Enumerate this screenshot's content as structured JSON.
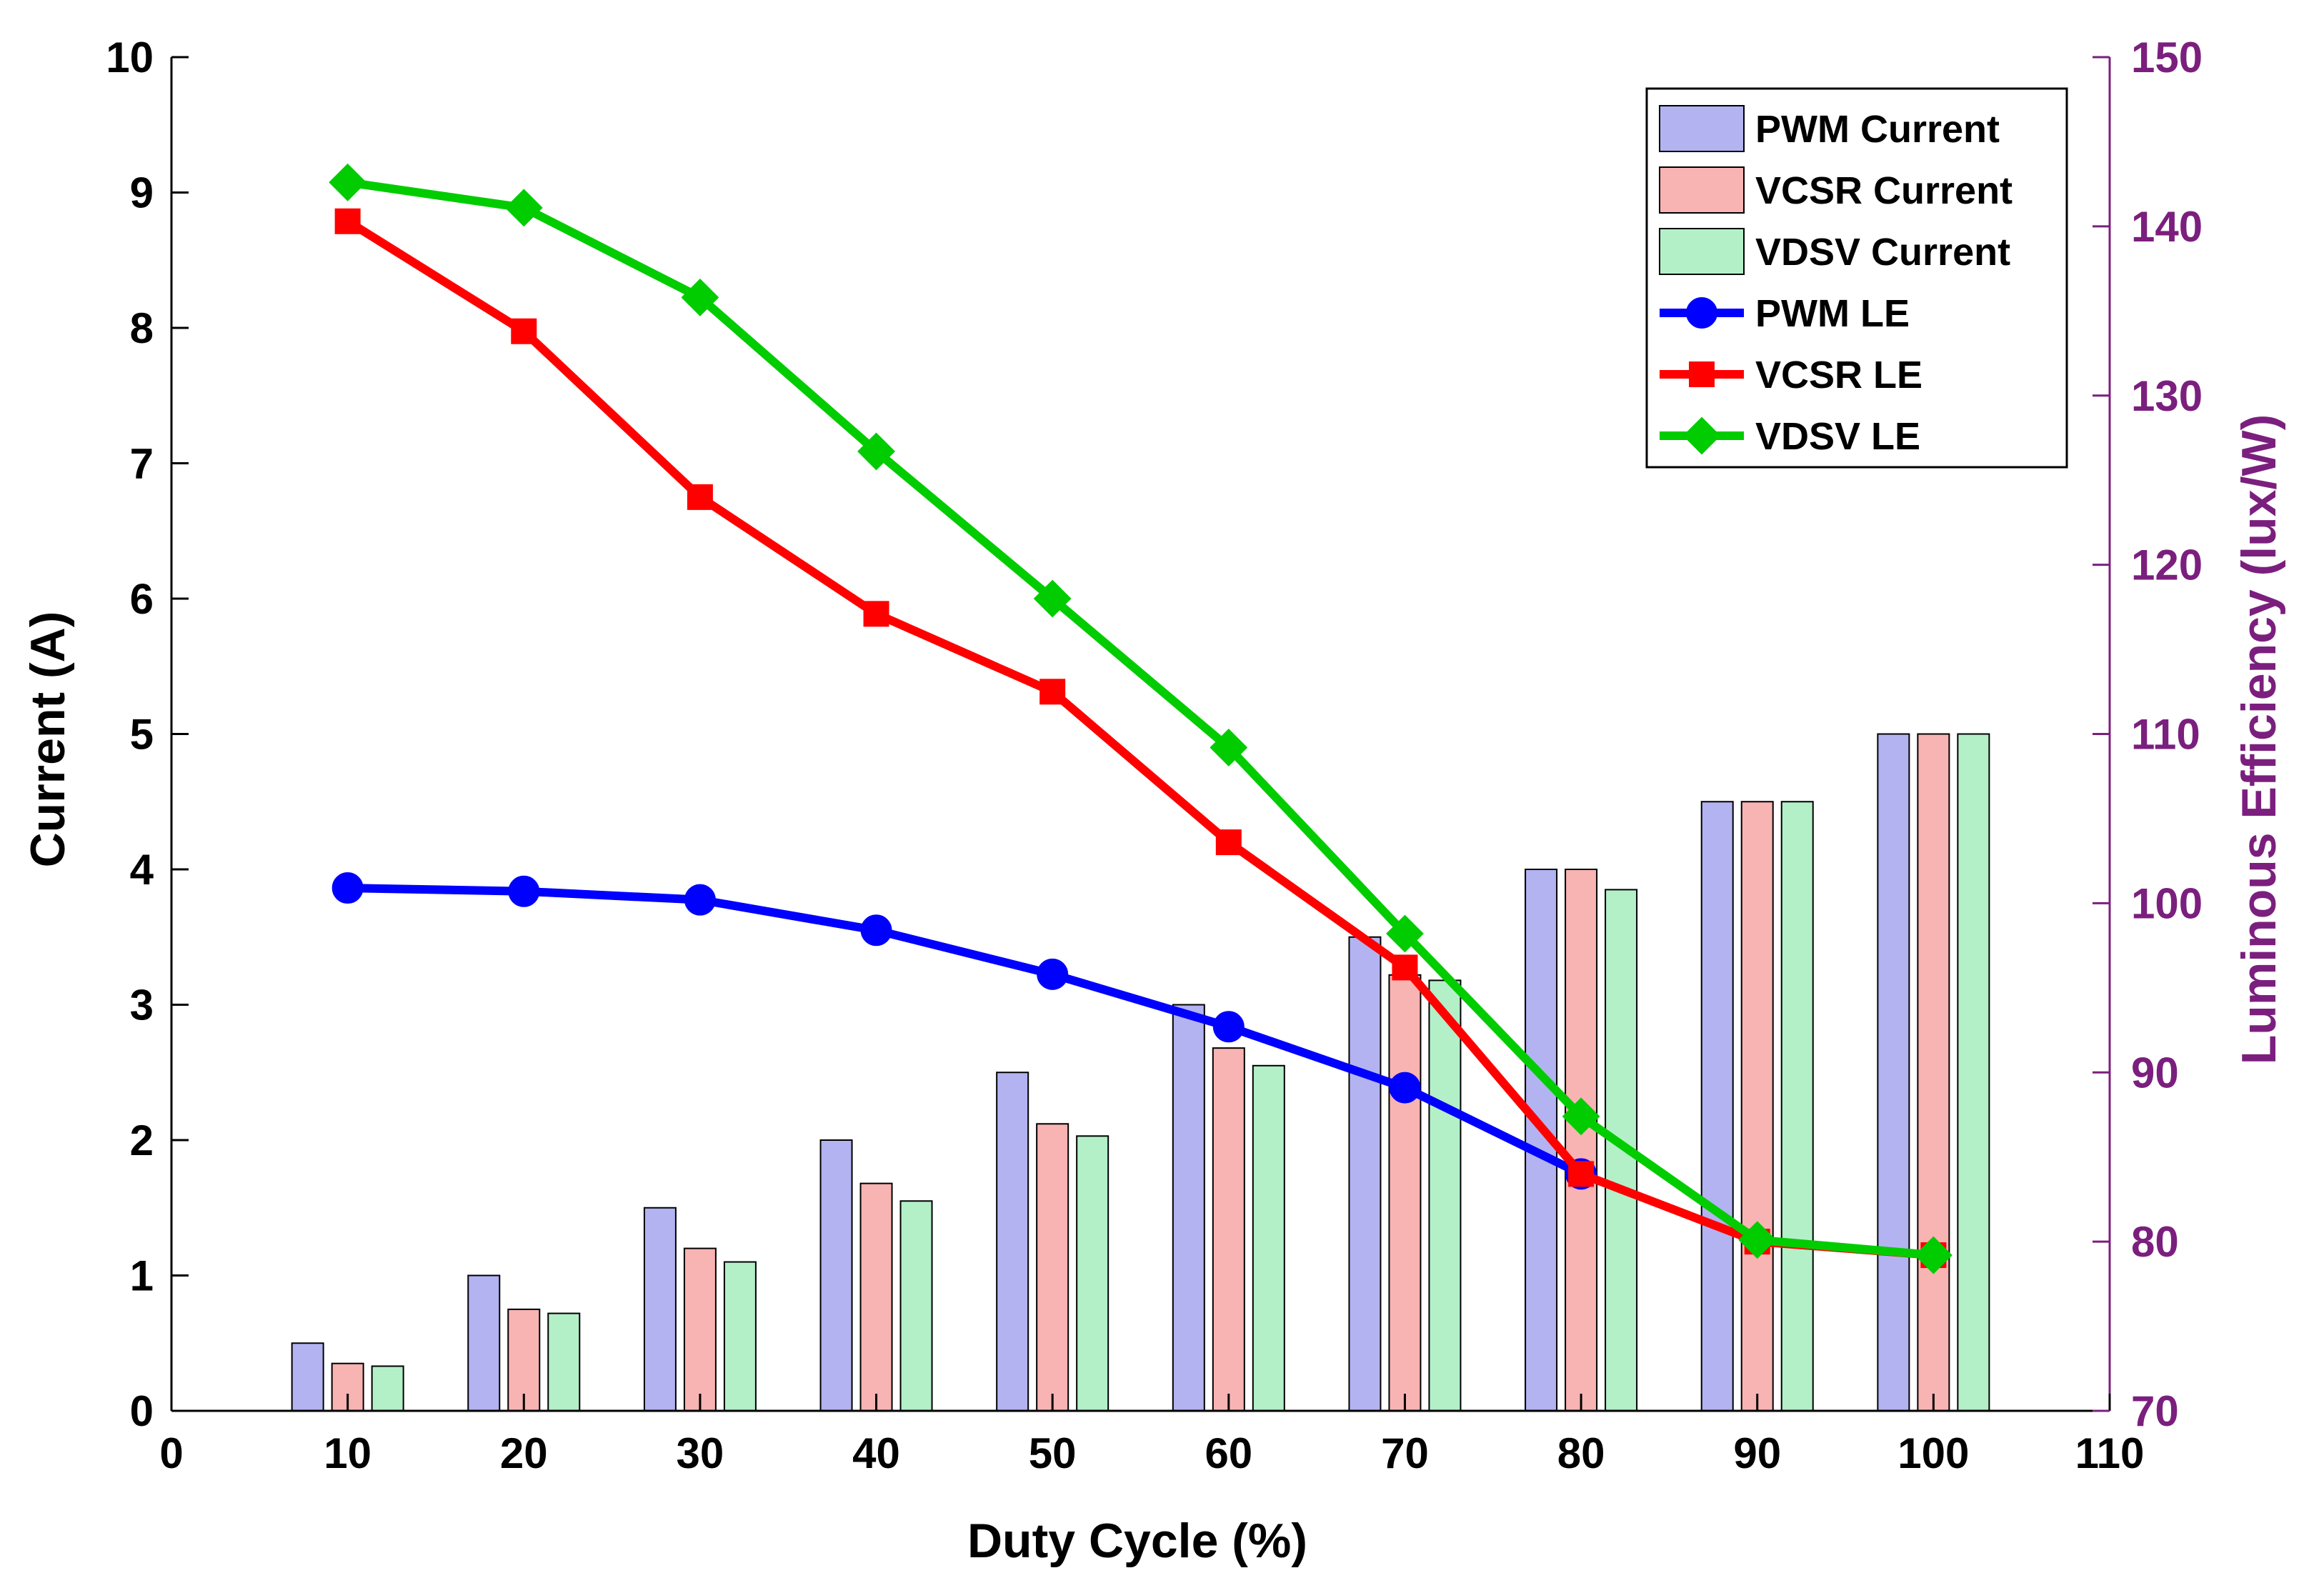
{
  "chart_data": {
    "type": "bar",
    "xlabel": "Duty Cycle (%)",
    "ylabel_left": "Current (A)",
    "ylabel_right": "Luminous Efficiency (lux/W)",
    "xlim": [
      0,
      110
    ],
    "xticks": [
      0,
      10,
      20,
      30,
      40,
      50,
      60,
      70,
      80,
      90,
      100,
      110
    ],
    "ylim_left": [
      0,
      10
    ],
    "yticks_left": [
      0,
      1,
      2,
      3,
      4,
      5,
      6,
      7,
      8,
      9,
      10
    ],
    "ylim_right": [
      70,
      150
    ],
    "yticks_right": [
      70,
      80,
      90,
      100,
      110,
      120,
      130,
      140,
      150
    ],
    "categories": [
      10,
      20,
      30,
      40,
      50,
      60,
      70,
      80,
      90,
      100
    ],
    "bar_series": [
      {
        "name": "PWM Current",
        "color": "#b3b3f2",
        "values": [
          0.5,
          1.0,
          1.5,
          2.0,
          2.5,
          3.0,
          3.5,
          4.0,
          4.5,
          5.0
        ]
      },
      {
        "name": "VCSR Current",
        "color": "#f8b3b3",
        "values": [
          0.35,
          0.75,
          1.2,
          1.68,
          2.12,
          2.68,
          3.22,
          4.0,
          4.5,
          5.0
        ]
      },
      {
        "name": "VDSV Current",
        "color": "#b3f0c8",
        "values": [
          0.33,
          0.72,
          1.1,
          1.55,
          2.03,
          2.55,
          3.18,
          3.85,
          4.5,
          5.0
        ]
      }
    ],
    "line_series": [
      {
        "name": "PWM LE",
        "color": "#0000ff",
        "marker": "circle",
        "x": [
          10,
          20,
          30,
          40,
          50,
          60,
          70,
          80
        ],
        "values": [
          100.9,
          100.7,
          100.2,
          98.4,
          95.8,
          92.7,
          89.1,
          84.0
        ]
      },
      {
        "name": "VCSR LE",
        "color": "#ff0000",
        "marker": "square",
        "x": [
          10,
          20,
          30,
          40,
          50,
          60,
          70,
          80,
          90,
          100
        ],
        "values": [
          140.3,
          133.8,
          124.0,
          117.1,
          112.5,
          103.6,
          96.2,
          84.0,
          80.0,
          79.2
        ]
      },
      {
        "name": "VDSV LE",
        "color": "#00cc00",
        "marker": "diamond",
        "x": [
          10,
          20,
          30,
          40,
          50,
          60,
          70,
          80,
          90,
          100
        ],
        "values": [
          142.6,
          141.1,
          135.8,
          126.7,
          118.0,
          109.2,
          98.2,
          87.4,
          80.1,
          79.2
        ]
      }
    ],
    "legend_position": "top-right",
    "right_axis_color": "#7b1f7e"
  }
}
